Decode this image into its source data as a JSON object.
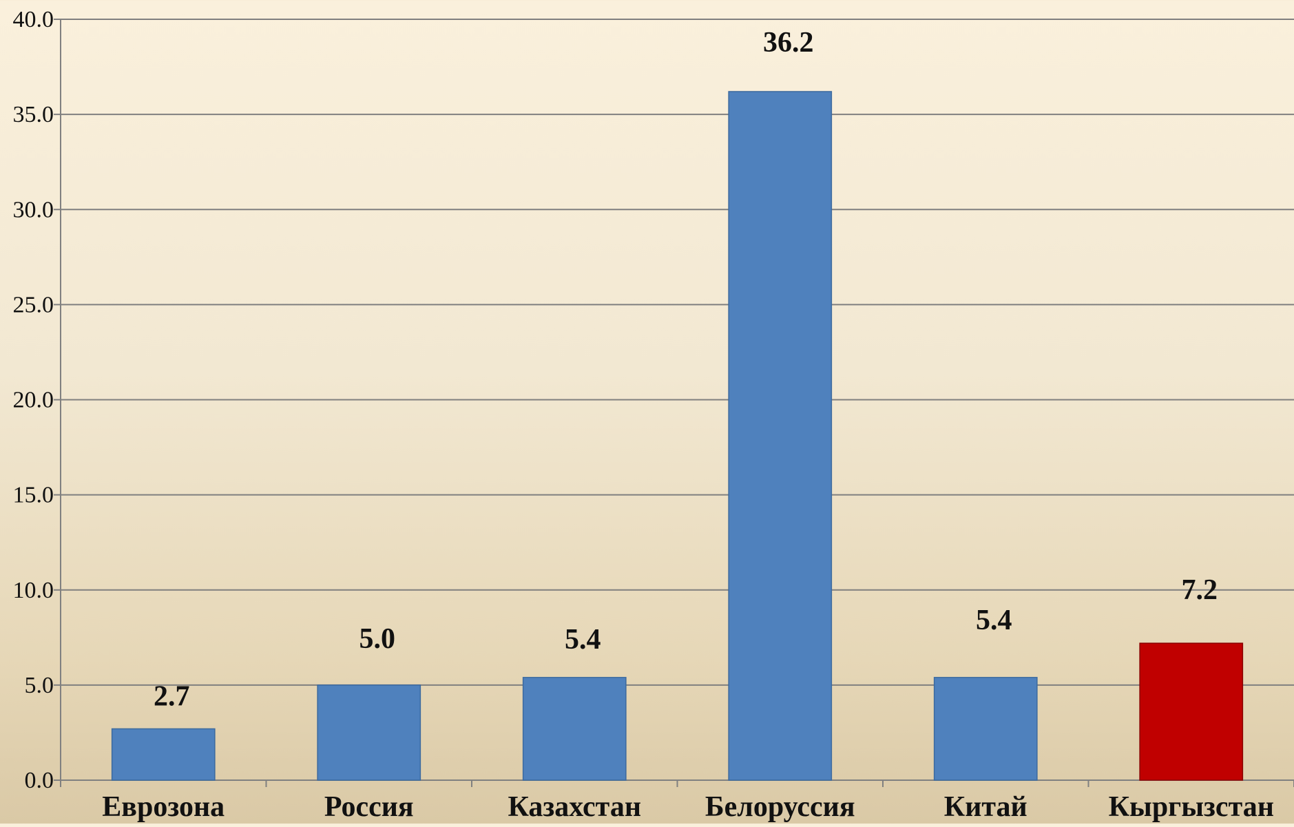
{
  "chart_data": {
    "type": "bar",
    "title": "",
    "xlabel": "",
    "ylabel": "",
    "categories": [
      "Еврозона",
      "Россия",
      "Казахстан",
      "Белоруссия",
      "Китай",
      "Кыргызстан"
    ],
    "values": [
      2.7,
      5.0,
      5.4,
      36.2,
      5.4,
      7.2
    ],
    "data_labels": [
      "2.7",
      "5.0",
      "5.4",
      "36.2",
      "5.4",
      "7.2"
    ],
    "ylim": [
      0,
      40
    ],
    "yticks": [
      0,
      5,
      10,
      15,
      20,
      25,
      30,
      35,
      40
    ],
    "ytick_labels": [
      "0.0",
      "5.0",
      "10.0",
      "15.0",
      "20.0",
      "25.0",
      "30.0",
      "35.0",
      "40.0"
    ],
    "grid": true,
    "legend": "none",
    "colors": {
      "default_bar": "#4f81bd",
      "highlight_bar": "#c00000",
      "highlight_category": "Кыргызстан",
      "gridline": "#7f7f7f",
      "axis": "#808080",
      "text": "#111111"
    }
  }
}
